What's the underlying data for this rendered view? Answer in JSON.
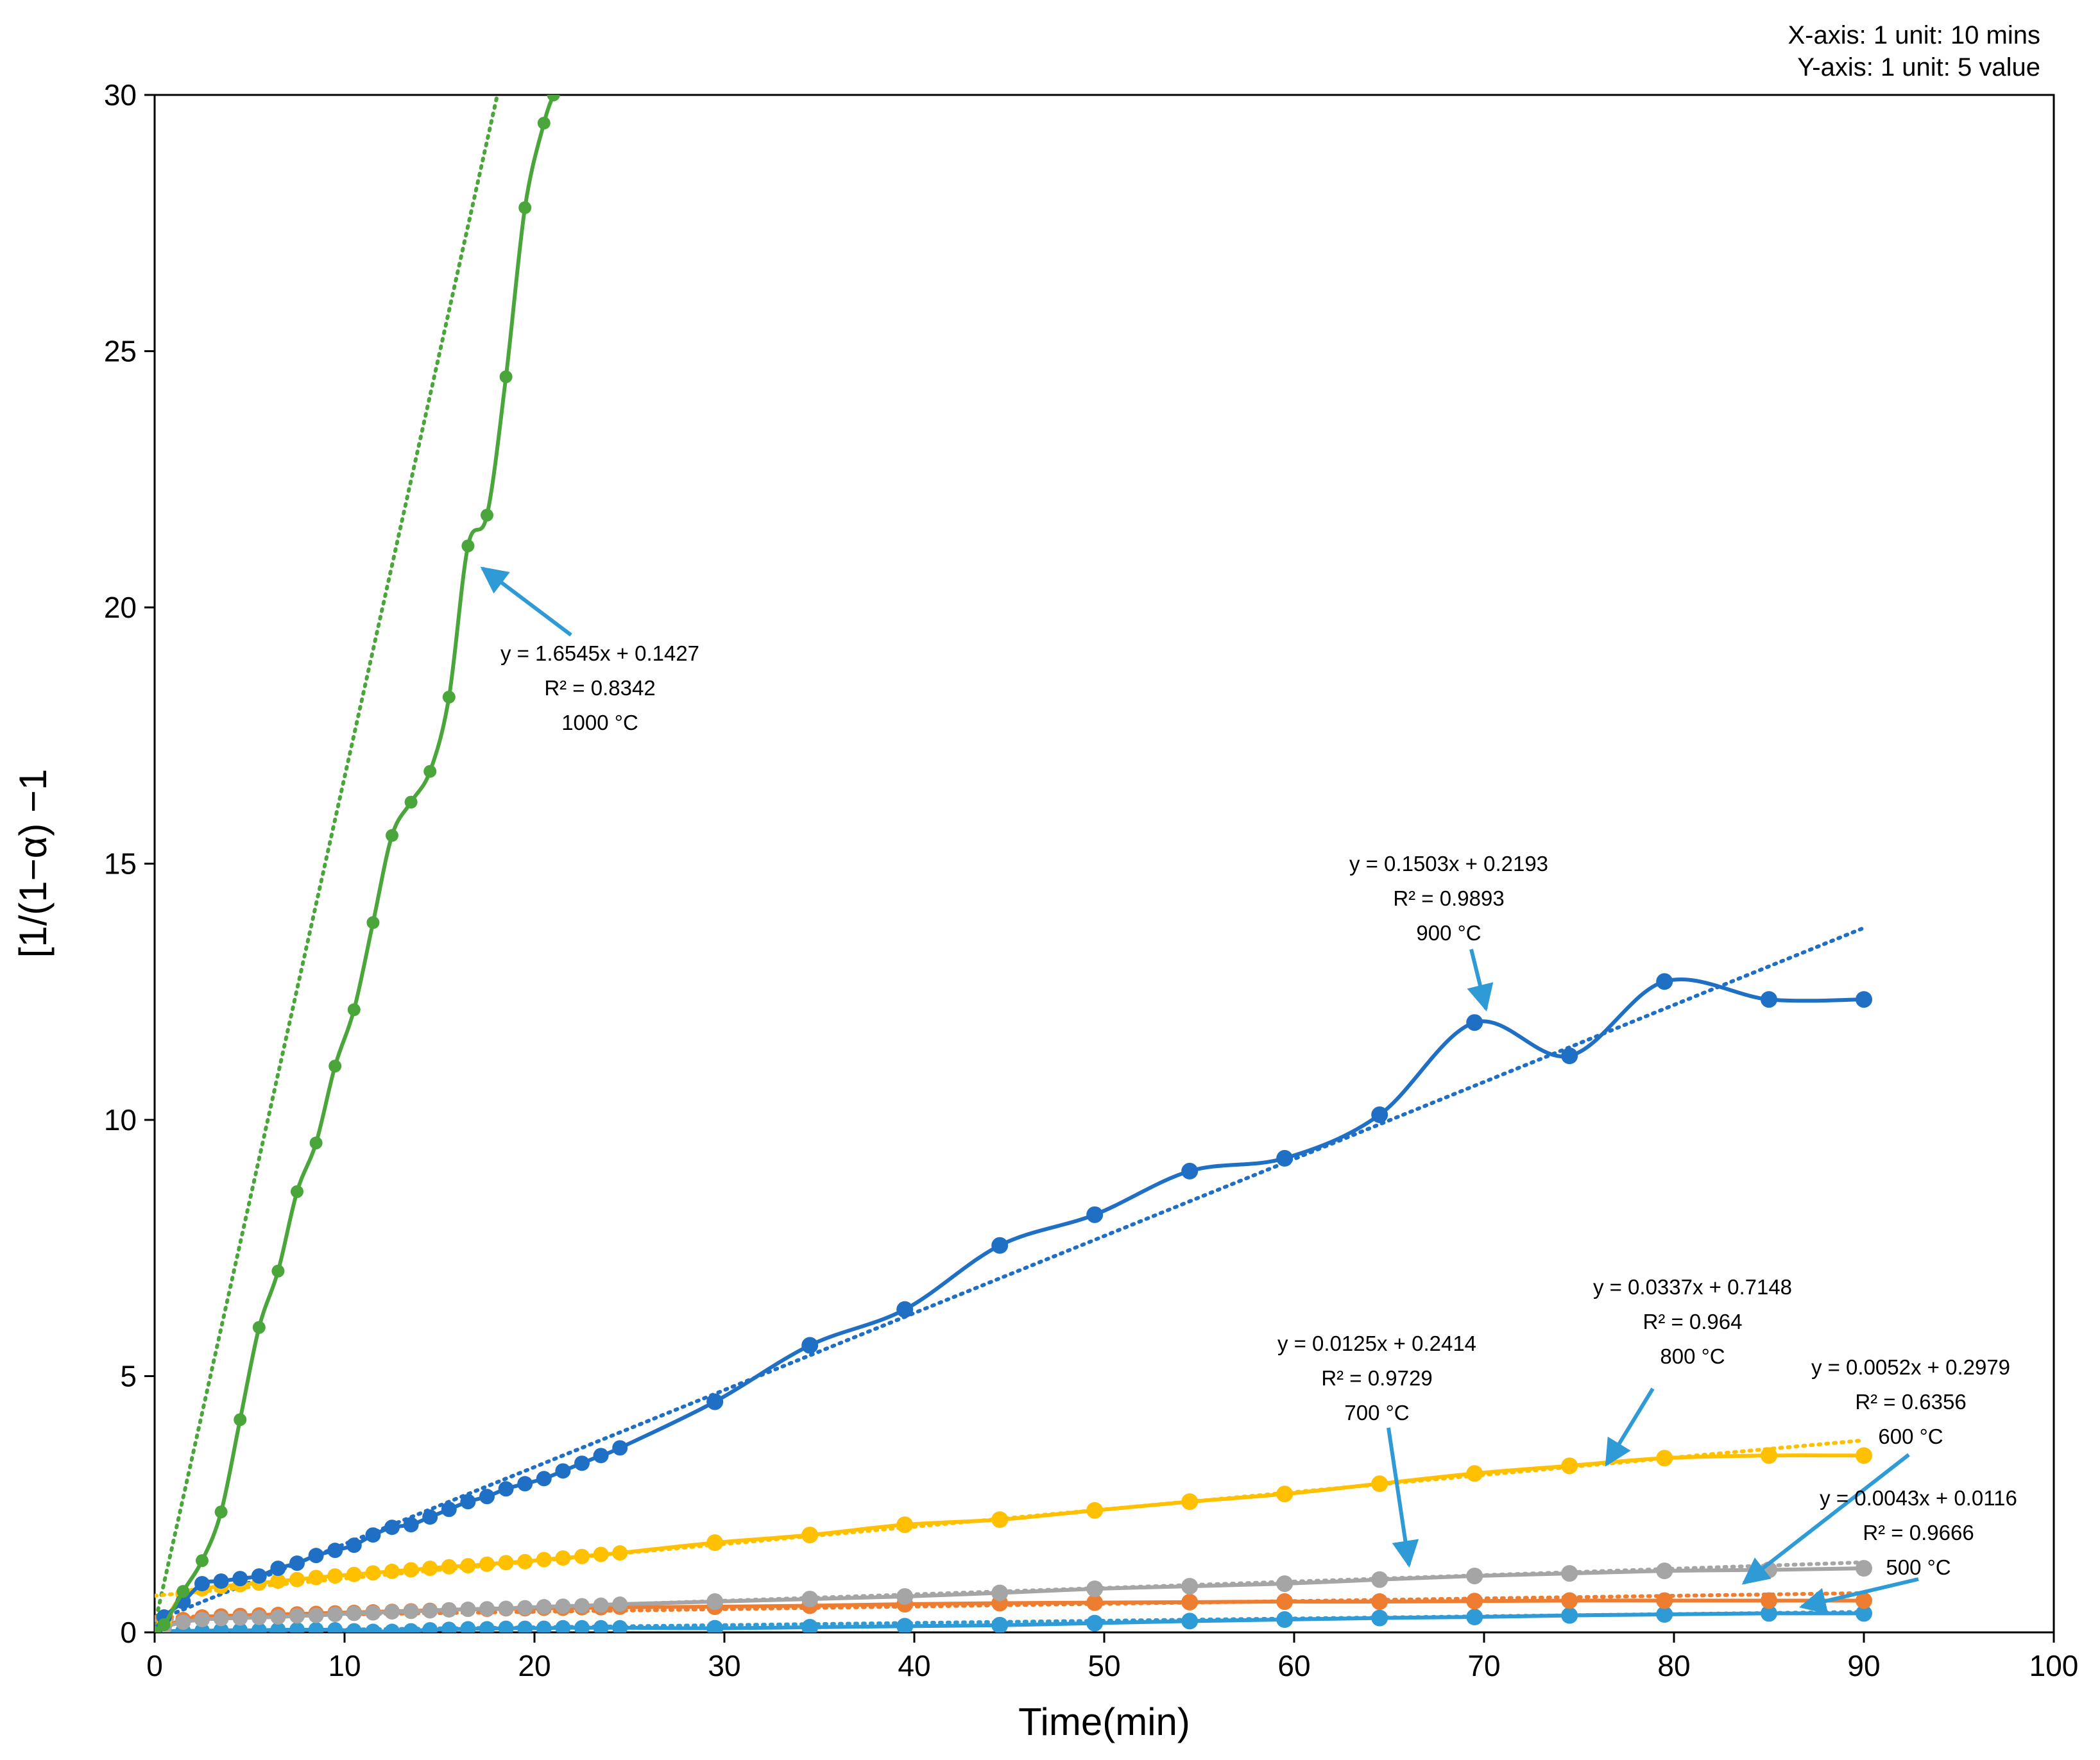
{
  "chart_data": {
    "type": "line",
    "title": "",
    "xlabel": "Time(min)",
    "ylabel": "[1/(1−α) −1",
    "xlim": [
      0,
      100
    ],
    "ylim": [
      0,
      30
    ],
    "xticks": [
      0,
      10,
      20,
      30,
      40,
      50,
      60,
      70,
      80,
      90,
      100
    ],
    "yticks": [
      0,
      5,
      10,
      15,
      20,
      25,
      30
    ],
    "grid": false,
    "scale_note": [
      "X-axis: 1 unit: 10 mins",
      "Y-axis: 1 unit:  5  value"
    ],
    "series": [
      {
        "name": "1000 °C",
        "color": "#4aa63a",
        "trend": {
          "slope": 1.6545,
          "intercept": 0.1427
        },
        "annotation": [
          "y = 1.6545x + 0.1427",
          "R² = 0.8342",
          "1000 °C"
        ],
        "points": [
          [
            0,
            0
          ],
          [
            0.5,
            0.15
          ],
          [
            1.5,
            0.8
          ],
          [
            2.5,
            1.4
          ],
          [
            3.5,
            2.35
          ],
          [
            4.5,
            4.15
          ],
          [
            5.5,
            5.95
          ],
          [
            6.5,
            7.05
          ],
          [
            7.5,
            8.6
          ],
          [
            8.5,
            9.55
          ],
          [
            9.5,
            11.05
          ],
          [
            10.5,
            12.15
          ],
          [
            11.5,
            13.85
          ],
          [
            12.5,
            15.55
          ],
          [
            13.5,
            16.2
          ],
          [
            14.5,
            16.8
          ],
          [
            15.5,
            18.25
          ],
          [
            16.5,
            21.2
          ],
          [
            17.5,
            21.8
          ],
          [
            18.5,
            24.5
          ],
          [
            19.5,
            27.8
          ],
          [
            20.5,
            29.45
          ],
          [
            21,
            30
          ]
        ]
      },
      {
        "name": "900 °C",
        "color": "#1f6fc5",
        "trend": {
          "slope": 0.1503,
          "intercept": 0.2193
        },
        "annotation": [
          "y = 0.1503x + 0.2193",
          "R² = 0.9893",
          "900 °C"
        ],
        "points": [
          [
            0,
            0
          ],
          [
            0.5,
            0.3
          ],
          [
            1.5,
            0.6
          ],
          [
            2.5,
            0.95
          ],
          [
            3.5,
            1.0
          ],
          [
            4.5,
            1.05
          ],
          [
            5.5,
            1.1
          ],
          [
            6.5,
            1.25
          ],
          [
            7.5,
            1.35
          ],
          [
            8.5,
            1.5
          ],
          [
            9.5,
            1.6
          ],
          [
            10.5,
            1.7
          ],
          [
            11.5,
            1.9
          ],
          [
            12.5,
            2.05
          ],
          [
            13.5,
            2.1
          ],
          [
            14.5,
            2.25
          ],
          [
            15.5,
            2.4
          ],
          [
            16.5,
            2.55
          ],
          [
            17.5,
            2.65
          ],
          [
            18.5,
            2.8
          ],
          [
            19.5,
            2.9
          ],
          [
            20.5,
            3.0
          ],
          [
            21.5,
            3.15
          ],
          [
            22.5,
            3.3
          ],
          [
            23.5,
            3.45
          ],
          [
            24.5,
            3.6
          ],
          [
            29.5,
            4.5
          ],
          [
            34.5,
            5.6
          ],
          [
            39.5,
            6.3
          ],
          [
            44.5,
            7.55
          ],
          [
            49.5,
            8.15
          ],
          [
            54.5,
            9.0
          ],
          [
            59.5,
            9.25
          ],
          [
            64.5,
            10.1
          ],
          [
            69.5,
            11.9
          ],
          [
            74.5,
            11.25
          ],
          [
            79.5,
            12.7
          ],
          [
            85,
            12.35
          ],
          [
            90,
            12.35
          ]
        ]
      },
      {
        "name": "800 °C",
        "color": "#ffc000",
        "trend": {
          "slope": 0.0337,
          "intercept": 0.7148
        },
        "annotation": [
          "y = 0.0337x + 0.7148",
          "R² = 0.964",
          "800 °C"
        ],
        "points": [
          [
            0,
            0
          ],
          [
            0.5,
            0.2
          ],
          [
            1.5,
            0.75
          ],
          [
            2.5,
            0.85
          ],
          [
            3.5,
            0.9
          ],
          [
            4.5,
            0.93
          ],
          [
            5.5,
            0.96
          ],
          [
            6.5,
            1.0
          ],
          [
            7.5,
            1.03
          ],
          [
            8.5,
            1.07
          ],
          [
            9.5,
            1.1
          ],
          [
            10.5,
            1.13
          ],
          [
            11.5,
            1.16
          ],
          [
            12.5,
            1.19
          ],
          [
            13.5,
            1.22
          ],
          [
            14.5,
            1.25
          ],
          [
            15.5,
            1.28
          ],
          [
            16.5,
            1.3
          ],
          [
            17.5,
            1.33
          ],
          [
            18.5,
            1.36
          ],
          [
            19.5,
            1.38
          ],
          [
            20.5,
            1.42
          ],
          [
            21.5,
            1.45
          ],
          [
            22.5,
            1.48
          ],
          [
            23.5,
            1.52
          ],
          [
            24.5,
            1.55
          ],
          [
            29.5,
            1.75
          ],
          [
            34.5,
            1.9
          ],
          [
            39.5,
            2.1
          ],
          [
            44.5,
            2.2
          ],
          [
            49.5,
            2.38
          ],
          [
            54.5,
            2.55
          ],
          [
            59.5,
            2.7
          ],
          [
            64.5,
            2.9
          ],
          [
            69.5,
            3.1
          ],
          [
            74.5,
            3.25
          ],
          [
            79.5,
            3.4
          ],
          [
            85,
            3.45
          ],
          [
            90,
            3.45
          ]
        ]
      },
      {
        "name": "700 °C",
        "color": "#a5a5a5",
        "trend": {
          "slope": 0.0125,
          "intercept": 0.2414
        },
        "annotation": [
          "y = 0.0125x + 0.2414",
          "R² = 0.9729",
          "700 °C"
        ],
        "points": [
          [
            0,
            0
          ],
          [
            0.5,
            0.1
          ],
          [
            1.5,
            0.2
          ],
          [
            2.5,
            0.25
          ],
          [
            3.5,
            0.27
          ],
          [
            4.5,
            0.28
          ],
          [
            5.5,
            0.29
          ],
          [
            6.5,
            0.3
          ],
          [
            7.5,
            0.32
          ],
          [
            8.5,
            0.33
          ],
          [
            9.5,
            0.35
          ],
          [
            10.5,
            0.37
          ],
          [
            11.5,
            0.38
          ],
          [
            12.5,
            0.4
          ],
          [
            13.5,
            0.41
          ],
          [
            14.5,
            0.42
          ],
          [
            15.5,
            0.44
          ],
          [
            16.5,
            0.45
          ],
          [
            17.5,
            0.46
          ],
          [
            18.5,
            0.47
          ],
          [
            19.5,
            0.48
          ],
          [
            20.5,
            0.5
          ],
          [
            21.5,
            0.51
          ],
          [
            22.5,
            0.52
          ],
          [
            23.5,
            0.53
          ],
          [
            24.5,
            0.55
          ],
          [
            29.5,
            0.6
          ],
          [
            34.5,
            0.65
          ],
          [
            39.5,
            0.7
          ],
          [
            44.5,
            0.77
          ],
          [
            49.5,
            0.85
          ],
          [
            54.5,
            0.9
          ],
          [
            59.5,
            0.95
          ],
          [
            64.5,
            1.03
          ],
          [
            69.5,
            1.1
          ],
          [
            74.5,
            1.15
          ],
          [
            79.5,
            1.2
          ],
          [
            85,
            1.22
          ],
          [
            90,
            1.25
          ]
        ]
      },
      {
        "name": "600 °C",
        "color": "#ed7d31",
        "trend": {
          "slope": 0.0052,
          "intercept": 0.2979
        },
        "annotation": [
          "y = 0.0052x + 0.2979",
          "R² = 0.6356",
          "600 °C"
        ],
        "points": [
          [
            0,
            0
          ],
          [
            0.5,
            0.1
          ],
          [
            1.5,
            0.25
          ],
          [
            2.5,
            0.3
          ],
          [
            3.5,
            0.32
          ],
          [
            4.5,
            0.33
          ],
          [
            5.5,
            0.34
          ],
          [
            6.5,
            0.35
          ],
          [
            7.5,
            0.36
          ],
          [
            8.5,
            0.37
          ],
          [
            9.5,
            0.38
          ],
          [
            10.5,
            0.39
          ],
          [
            11.5,
            0.4
          ],
          [
            12.5,
            0.41
          ],
          [
            13.5,
            0.42
          ],
          [
            14.5,
            0.43
          ],
          [
            15.5,
            0.44
          ],
          [
            16.5,
            0.45
          ],
          [
            17.5,
            0.45
          ],
          [
            18.5,
            0.46
          ],
          [
            19.5,
            0.46
          ],
          [
            20.5,
            0.47
          ],
          [
            21.5,
            0.47
          ],
          [
            22.5,
            0.48
          ],
          [
            23.5,
            0.48
          ],
          [
            24.5,
            0.49
          ],
          [
            29.5,
            0.5
          ],
          [
            34.5,
            0.52
          ],
          [
            39.5,
            0.55
          ],
          [
            44.5,
            0.57
          ],
          [
            49.5,
            0.58
          ],
          [
            54.5,
            0.59
          ],
          [
            59.5,
            0.6
          ],
          [
            64.5,
            0.6
          ],
          [
            69.5,
            0.61
          ],
          [
            74.5,
            0.62
          ],
          [
            79.5,
            0.62
          ],
          [
            85,
            0.62
          ],
          [
            90,
            0.62
          ]
        ]
      },
      {
        "name": "500 °C",
        "color": "#2e9bd6",
        "trend": {
          "slope": 0.0043,
          "intercept": 0.0116
        },
        "annotation": [
          "y = 0.0043x + 0.0116",
          "R² = 0.9666",
          "500 °C"
        ],
        "points": [
          [
            0,
            0
          ],
          [
            0.5,
            0.02
          ],
          [
            1.5,
            0.03
          ],
          [
            2.5,
            0.03
          ],
          [
            3.5,
            0.04
          ],
          [
            4.5,
            0.04
          ],
          [
            5.5,
            0.04
          ],
          [
            6.5,
            0.05
          ],
          [
            7.5,
            0.05
          ],
          [
            8.5,
            0.05
          ],
          [
            9.5,
            0.05
          ],
          [
            10.5,
            0.03
          ],
          [
            11.5,
            0.02
          ],
          [
            12.5,
            0.02
          ],
          [
            13.5,
            0.03
          ],
          [
            14.5,
            0.05
          ],
          [
            15.5,
            0.06
          ],
          [
            16.5,
            0.07
          ],
          [
            17.5,
            0.07
          ],
          [
            18.5,
            0.08
          ],
          [
            19.5,
            0.08
          ],
          [
            20.5,
            0.08
          ],
          [
            21.5,
            0.09
          ],
          [
            22.5,
            0.09
          ],
          [
            23.5,
            0.09
          ],
          [
            24.5,
            0.09
          ],
          [
            29.5,
            0.08
          ],
          [
            34.5,
            0.1
          ],
          [
            39.5,
            0.12
          ],
          [
            44.5,
            0.14
          ],
          [
            49.5,
            0.18
          ],
          [
            54.5,
            0.22
          ],
          [
            59.5,
            0.25
          ],
          [
            64.5,
            0.28
          ],
          [
            69.5,
            0.3
          ],
          [
            74.5,
            0.33
          ],
          [
            79.5,
            0.35
          ],
          [
            85,
            0.37
          ],
          [
            90,
            0.37
          ]
        ]
      }
    ]
  }
}
